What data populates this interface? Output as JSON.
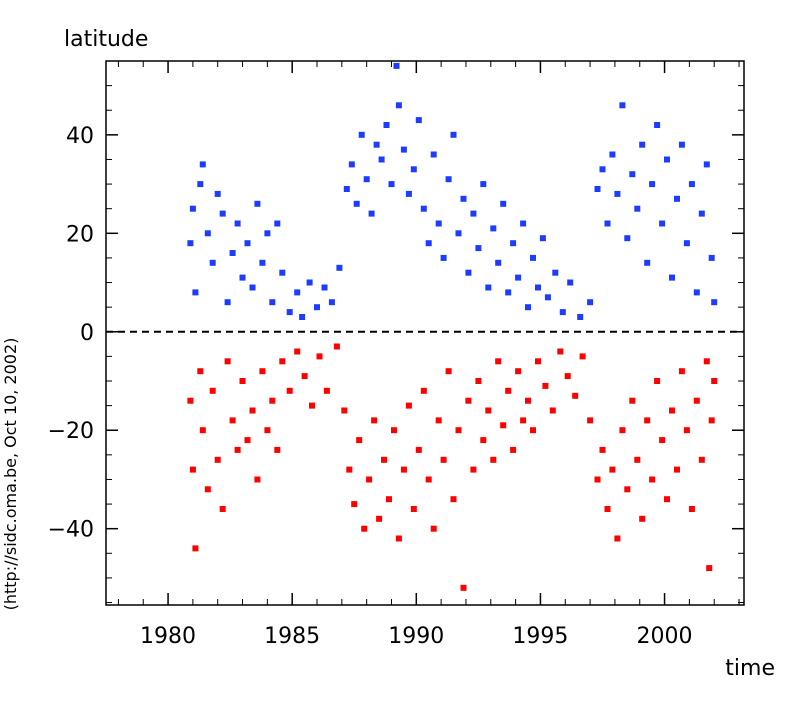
{
  "chart_data": {
    "type": "scatter",
    "title": "",
    "xlabel": "time",
    "ylabel": "latitude",
    "credit": "(http://sidc.oma.be, Oct 10, 2002)",
    "xlim": [
      1977.5,
      2003.2
    ],
    "ylim": [
      -55.5,
      55
    ],
    "xticks": [
      1980,
      1985,
      1990,
      1995,
      2000
    ],
    "xtick_labels": [
      "1980",
      "1985",
      "1990",
      "1995",
      "2000"
    ],
    "yticks": [
      -40,
      -20,
      0,
      20,
      40
    ],
    "ytick_labels": [
      "−40",
      "−20",
      "0",
      "20",
      "40"
    ],
    "grid": false,
    "legend": "none",
    "equator_line": {
      "y": 0,
      "style": "dashed",
      "color": "#000000"
    },
    "series": [
      {
        "hemisphere": "north",
        "color": "#1e3cff",
        "points": [
          [
            1980.9,
            18
          ],
          [
            1981.0,
            25
          ],
          [
            1981.1,
            8
          ],
          [
            1981.3,
            30
          ],
          [
            1981.4,
            34
          ],
          [
            1981.6,
            20
          ],
          [
            1981.8,
            14
          ],
          [
            1982.0,
            28
          ],
          [
            1982.2,
            24
          ],
          [
            1982.4,
            6
          ],
          [
            1982.6,
            16
          ],
          [
            1982.8,
            22
          ],
          [
            1983.0,
            11
          ],
          [
            1983.2,
            18
          ],
          [
            1983.4,
            9
          ],
          [
            1983.6,
            26
          ],
          [
            1983.8,
            14
          ],
          [
            1984.0,
            20
          ],
          [
            1984.2,
            6
          ],
          [
            1984.4,
            22
          ],
          [
            1984.6,
            12
          ],
          [
            1984.9,
            4
          ],
          [
            1985.2,
            8
          ],
          [
            1985.4,
            3
          ],
          [
            1985.7,
            10
          ],
          [
            1986.0,
            5
          ],
          [
            1986.3,
            9
          ],
          [
            1986.6,
            6
          ],
          [
            1986.9,
            13
          ],
          [
            1987.2,
            29
          ],
          [
            1987.4,
            34
          ],
          [
            1987.6,
            26
          ],
          [
            1987.8,
            40
          ],
          [
            1988.0,
            31
          ],
          [
            1988.2,
            24
          ],
          [
            1988.4,
            38
          ],
          [
            1988.6,
            35
          ],
          [
            1988.8,
            42
          ],
          [
            1989.0,
            30
          ],
          [
            1989.2,
            54
          ],
          [
            1989.3,
            46
          ],
          [
            1989.5,
            37
          ],
          [
            1989.7,
            28
          ],
          [
            1989.9,
            33
          ],
          [
            1990.1,
            43
          ],
          [
            1990.3,
            25
          ],
          [
            1990.5,
            18
          ],
          [
            1990.7,
            36
          ],
          [
            1990.9,
            22
          ],
          [
            1991.1,
            15
          ],
          [
            1991.3,
            31
          ],
          [
            1991.5,
            40
          ],
          [
            1991.7,
            20
          ],
          [
            1991.9,
            27
          ],
          [
            1992.1,
            12
          ],
          [
            1992.3,
            24
          ],
          [
            1992.5,
            17
          ],
          [
            1992.7,
            30
          ],
          [
            1992.9,
            9
          ],
          [
            1993.1,
            21
          ],
          [
            1993.3,
            14
          ],
          [
            1993.5,
            26
          ],
          [
            1993.7,
            8
          ],
          [
            1993.9,
            18
          ],
          [
            1994.1,
            11
          ],
          [
            1994.3,
            22
          ],
          [
            1994.5,
            5
          ],
          [
            1994.7,
            15
          ],
          [
            1994.9,
            9
          ],
          [
            1995.1,
            19
          ],
          [
            1995.3,
            7
          ],
          [
            1995.6,
            12
          ],
          [
            1995.9,
            4
          ],
          [
            1996.2,
            10
          ],
          [
            1996.6,
            3
          ],
          [
            1997.0,
            6
          ],
          [
            1997.3,
            29
          ],
          [
            1997.5,
            33
          ],
          [
            1997.7,
            22
          ],
          [
            1997.9,
            36
          ],
          [
            1998.1,
            28
          ],
          [
            1998.3,
            46
          ],
          [
            1998.5,
            19
          ],
          [
            1998.7,
            32
          ],
          [
            1998.9,
            25
          ],
          [
            1999.1,
            38
          ],
          [
            1999.3,
            14
          ],
          [
            1999.5,
            30
          ],
          [
            1999.7,
            42
          ],
          [
            1999.9,
            22
          ],
          [
            2000.1,
            35
          ],
          [
            2000.3,
            11
          ],
          [
            2000.5,
            27
          ],
          [
            2000.7,
            38
          ],
          [
            2000.9,
            18
          ],
          [
            2001.1,
            30
          ],
          [
            2001.3,
            8
          ],
          [
            2001.5,
            24
          ],
          [
            2001.7,
            34
          ],
          [
            2001.9,
            15
          ],
          [
            2002.0,
            6
          ]
        ]
      },
      {
        "hemisphere": "south",
        "color": "#ff0000",
        "points": [
          [
            1980.9,
            -14
          ],
          [
            1981.0,
            -28
          ],
          [
            1981.1,
            -44
          ],
          [
            1981.3,
            -8
          ],
          [
            1981.4,
            -20
          ],
          [
            1981.6,
            -32
          ],
          [
            1981.8,
            -12
          ],
          [
            1982.0,
            -26
          ],
          [
            1982.2,
            -36
          ],
          [
            1982.4,
            -6
          ],
          [
            1982.6,
            -18
          ],
          [
            1982.8,
            -24
          ],
          [
            1983.0,
            -10
          ],
          [
            1983.2,
            -22
          ],
          [
            1983.4,
            -16
          ],
          [
            1983.6,
            -30
          ],
          [
            1983.8,
            -8
          ],
          [
            1984.0,
            -20
          ],
          [
            1984.2,
            -14
          ],
          [
            1984.4,
            -24
          ],
          [
            1984.6,
            -6
          ],
          [
            1984.9,
            -12
          ],
          [
            1985.2,
            -4
          ],
          [
            1985.5,
            -9
          ],
          [
            1985.8,
            -15
          ],
          [
            1986.1,
            -5
          ],
          [
            1986.4,
            -12
          ],
          [
            1986.8,
            -3
          ],
          [
            1987.1,
            -16
          ],
          [
            1987.3,
            -28
          ],
          [
            1987.5,
            -35
          ],
          [
            1987.7,
            -22
          ],
          [
            1987.9,
            -40
          ],
          [
            1988.1,
            -30
          ],
          [
            1988.3,
            -18
          ],
          [
            1988.5,
            -38
          ],
          [
            1988.7,
            -26
          ],
          [
            1988.9,
            -34
          ],
          [
            1989.1,
            -20
          ],
          [
            1989.3,
            -42
          ],
          [
            1989.5,
            -28
          ],
          [
            1989.7,
            -15
          ],
          [
            1989.9,
            -36
          ],
          [
            1990.1,
            -24
          ],
          [
            1990.3,
            -12
          ],
          [
            1990.5,
            -30
          ],
          [
            1990.7,
            -40
          ],
          [
            1990.9,
            -18
          ],
          [
            1991.1,
            -26
          ],
          [
            1991.3,
            -8
          ],
          [
            1991.5,
            -34
          ],
          [
            1991.7,
            -20
          ],
          [
            1991.9,
            -52
          ],
          [
            1992.1,
            -14
          ],
          [
            1992.3,
            -28
          ],
          [
            1992.5,
            -10
          ],
          [
            1992.7,
            -22
          ],
          [
            1992.9,
            -16
          ],
          [
            1993.1,
            -26
          ],
          [
            1993.3,
            -6
          ],
          [
            1993.5,
            -19
          ],
          [
            1993.7,
            -12
          ],
          [
            1993.9,
            -24
          ],
          [
            1994.1,
            -8
          ],
          [
            1994.3,
            -18
          ],
          [
            1994.5,
            -14
          ],
          [
            1994.7,
            -20
          ],
          [
            1994.9,
            -6
          ],
          [
            1995.2,
            -11
          ],
          [
            1995.5,
            -16
          ],
          [
            1995.8,
            -4
          ],
          [
            1996.1,
            -9
          ],
          [
            1996.4,
            -13
          ],
          [
            1996.7,
            -5
          ],
          [
            1997.0,
            -18
          ],
          [
            1997.3,
            -30
          ],
          [
            1997.5,
            -24
          ],
          [
            1997.7,
            -36
          ],
          [
            1997.9,
            -28
          ],
          [
            1998.1,
            -42
          ],
          [
            1998.3,
            -20
          ],
          [
            1998.5,
            -32
          ],
          [
            1998.7,
            -14
          ],
          [
            1998.9,
            -26
          ],
          [
            1999.1,
            -38
          ],
          [
            1999.3,
            -18
          ],
          [
            1999.5,
            -30
          ],
          [
            1999.7,
            -10
          ],
          [
            1999.9,
            -22
          ],
          [
            2000.1,
            -34
          ],
          [
            2000.3,
            -16
          ],
          [
            2000.5,
            -28
          ],
          [
            2000.7,
            -8
          ],
          [
            2000.9,
            -20
          ],
          [
            2001.1,
            -36
          ],
          [
            2001.3,
            -14
          ],
          [
            2001.5,
            -26
          ],
          [
            2001.7,
            -6
          ],
          [
            2001.8,
            -48
          ],
          [
            2001.9,
            -18
          ],
          [
            2002.0,
            -10
          ]
        ]
      }
    ]
  }
}
